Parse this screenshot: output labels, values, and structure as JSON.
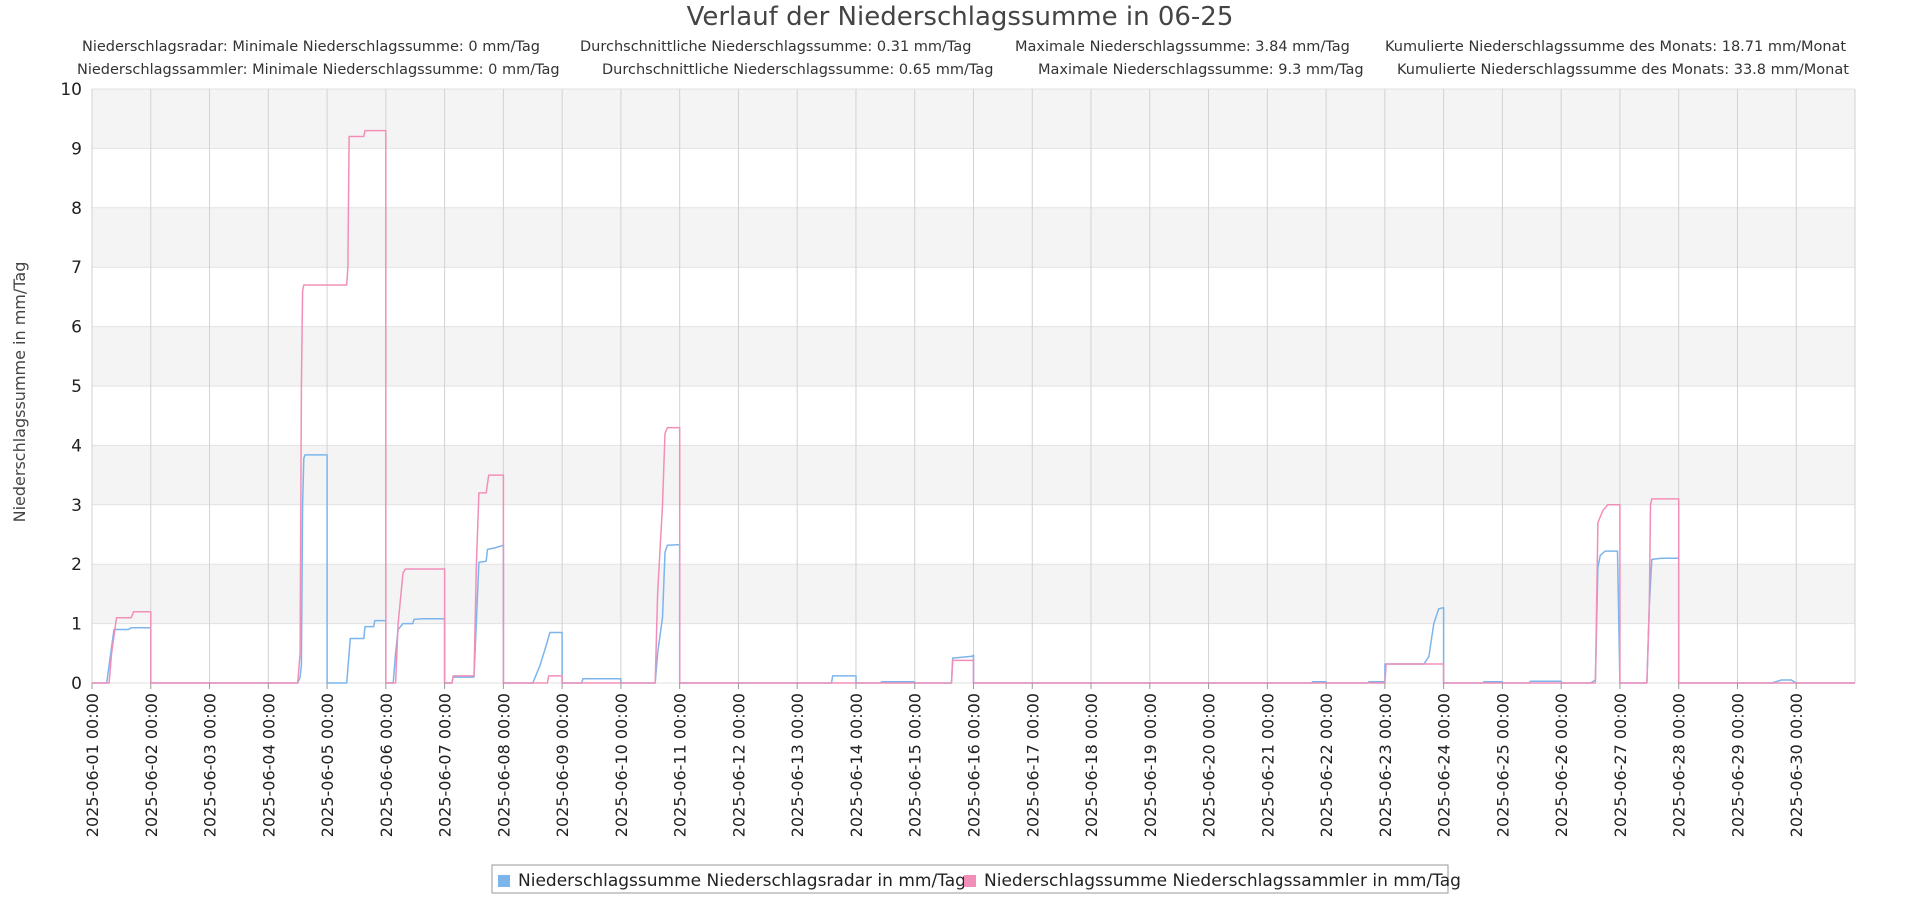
{
  "chart_data": {
    "type": "line",
    "title": "Verlauf der Niederschlagssumme in 06-25",
    "stats": [
      {
        "name": "Niederschlagsradar",
        "min_label": "Niederschlagsradar: Minimale Niederschlagssumme: 0 mm/Tag",
        "avg_label": "Durchschnittliche Niederschlagssumme: 0.31 mm/Tag",
        "max_label": "Maximale Niederschlagssumme: 3.84 mm/Tag",
        "cum_label": "Kumulierte Niederschlagssumme des Monats: 18.71 mm/Monat"
      },
      {
        "name": "Niederschlagssammler",
        "min_label": "Niederschlagssammler: Minimale Niederschlagssumme: 0 mm/Tag",
        "avg_label": "Durchschnittliche Niederschlagssumme: 0.65 mm/Tag",
        "max_label": "Maximale Niederschlagssumme: 9.3 mm/Tag",
        "cum_label": "Kumulierte Niederschlagssumme des Monats: 33.8 mm/Monat"
      }
    ],
    "ylabel": "Niederschlagssumme in mm/Tag",
    "ylim": [
      0,
      10
    ],
    "yticks": [
      0,
      1,
      2,
      3,
      4,
      5,
      6,
      7,
      8,
      9,
      10
    ],
    "xlim": [
      "2025-06-01 00:00",
      "2025-07-01 00:00"
    ],
    "xticks": [
      "2025-06-01 00:00",
      "2025-06-02 00:00",
      "2025-06-03 00:00",
      "2025-06-04 00:00",
      "2025-06-05 00:00",
      "2025-06-06 00:00",
      "2025-06-07 00:00",
      "2025-06-08 00:00",
      "2025-06-09 00:00",
      "2025-06-10 00:00",
      "2025-06-11 00:00",
      "2025-06-12 00:00",
      "2025-06-13 00:00",
      "2025-06-14 00:00",
      "2025-06-15 00:00",
      "2025-06-16 00:00",
      "2025-06-17 00:00",
      "2025-06-18 00:00",
      "2025-06-19 00:00",
      "2025-06-20 00:00",
      "2025-06-21 00:00",
      "2025-06-22 00:00",
      "2025-06-23 00:00",
      "2025-06-24 00:00",
      "2025-06-25 00:00",
      "2025-06-26 00:00",
      "2025-06-27 00:00",
      "2025-06-28 00:00",
      "2025-06-29 00:00",
      "2025-06-30 00:00"
    ],
    "grid": true,
    "legend_position": "bottom-center",
    "series": [
      {
        "name": "Niederschlagssumme Niederschlagsradar in mm/Tag",
        "color": "#7cb5ec",
        "points": [
          [
            "2025-06-01 00:00",
            0
          ],
          [
            "2025-06-01 06:00",
            0
          ],
          [
            "2025-06-01 07:00",
            0.3
          ],
          [
            "2025-06-01 09:00",
            0.9
          ],
          [
            "2025-06-01 15:00",
            0.9
          ],
          [
            "2025-06-01 16:00",
            0.93
          ],
          [
            "2025-06-02 00:00",
            0.93
          ],
          [
            "2025-06-02 00:00",
            0
          ],
          [
            "2025-06-04 12:00",
            0
          ],
          [
            "2025-06-04 13:00",
            0.1
          ],
          [
            "2025-06-04 13:30",
            0.3
          ],
          [
            "2025-06-04 14:00",
            3.0
          ],
          [
            "2025-06-04 14:30",
            3.78
          ],
          [
            "2025-06-04 15:00",
            3.84
          ],
          [
            "2025-06-05 00:00",
            3.84
          ],
          [
            "2025-06-05 00:00",
            0
          ],
          [
            "2025-06-05 08:00",
            0
          ],
          [
            "2025-06-05 09:00",
            0.5
          ],
          [
            "2025-06-05 09:30",
            0.75
          ],
          [
            "2025-06-05 15:00",
            0.75
          ],
          [
            "2025-06-05 15:30",
            0.95
          ],
          [
            "2025-06-05 19:00",
            0.95
          ],
          [
            "2025-06-05 19:30",
            1.05
          ],
          [
            "2025-06-06 00:00",
            1.05
          ],
          [
            "2025-06-06 00:00",
            0
          ],
          [
            "2025-06-06 03:00",
            0
          ],
          [
            "2025-06-06 04:00",
            0.5
          ],
          [
            "2025-06-06 05:00",
            0.9
          ],
          [
            "2025-06-06 07:00",
            1.0
          ],
          [
            "2025-06-06 11:00",
            1.0
          ],
          [
            "2025-06-06 11:30",
            1.07
          ],
          [
            "2025-06-06 15:00",
            1.08
          ],
          [
            "2025-06-07 00:00",
            1.08
          ],
          [
            "2025-06-07 00:00",
            0
          ],
          [
            "2025-06-07 03:00",
            0
          ],
          [
            "2025-06-07 03:30",
            0.1
          ],
          [
            "2025-06-07 12:00",
            0.1
          ],
          [
            "2025-06-07 14:00",
            2.03
          ],
          [
            "2025-06-07 17:00",
            2.05
          ],
          [
            "2025-06-07 17:30",
            2.25
          ],
          [
            "2025-06-07 21:00",
            2.28
          ],
          [
            "2025-06-08 00:00",
            2.32
          ],
          [
            "2025-06-08 00:00",
            0
          ],
          [
            "2025-06-08 12:00",
            0
          ],
          [
            "2025-06-08 15:00",
            0.3
          ],
          [
            "2025-06-08 18:00",
            0.7
          ],
          [
            "2025-06-08 19:00",
            0.85
          ],
          [
            "2025-06-09 00:00",
            0.85
          ],
          [
            "2025-06-09 00:00",
            0
          ],
          [
            "2025-06-09 08:00",
            0
          ],
          [
            "2025-06-09 08:30",
            0.07
          ],
          [
            "2025-06-10 00:00",
            0.07
          ],
          [
            "2025-06-10 00:00",
            0
          ],
          [
            "2025-06-10 14:00",
            0
          ],
          [
            "2025-06-10 15:00",
            0.5
          ],
          [
            "2025-06-10 17:00",
            1.1
          ],
          [
            "2025-06-10 18:00",
            2.2
          ],
          [
            "2025-06-10 19:00",
            2.32
          ],
          [
            "2025-06-11 00:00",
            2.33
          ],
          [
            "2025-06-11 00:00",
            0
          ],
          [
            "2025-06-13 14:00",
            0
          ],
          [
            "2025-06-13 14:30",
            0.12
          ],
          [
            "2025-06-14 00:00",
            0.12
          ],
          [
            "2025-06-14 00:00",
            0
          ],
          [
            "2025-06-14 10:00",
            0
          ],
          [
            "2025-06-14 10:30",
            0.02
          ],
          [
            "2025-06-15 00:00",
            0.02
          ],
          [
            "2025-06-15 00:00",
            0
          ],
          [
            "2025-06-15 15:00",
            0
          ],
          [
            "2025-06-15 15:30",
            0.42
          ],
          [
            "2025-06-15 23:30",
            0.45
          ],
          [
            "2025-06-16 00:00",
            0.47
          ],
          [
            "2025-06-16 00:00",
            0
          ],
          [
            "2025-06-21 18:00",
            0
          ],
          [
            "2025-06-21 18:30",
            0.02
          ],
          [
            "2025-06-22 00:00",
            0.02
          ],
          [
            "2025-06-22 00:00",
            0
          ],
          [
            "2025-06-22 17:00",
            0
          ],
          [
            "2025-06-22 17:30",
            0.02
          ],
          [
            "2025-06-23 00:00",
            0.02
          ],
          [
            "2025-06-23 00:00",
            0.32
          ],
          [
            "2025-06-23 16:00",
            0.32
          ],
          [
            "2025-06-23 18:00",
            0.45
          ],
          [
            "2025-06-23 20:00",
            1.0
          ],
          [
            "2025-06-23 22:00",
            1.25
          ],
          [
            "2025-06-24 00:00",
            1.27
          ],
          [
            "2025-06-24 00:00",
            0
          ],
          [
            "2025-06-24 16:00",
            0
          ],
          [
            "2025-06-24 16:30",
            0.02
          ],
          [
            "2025-06-25 00:00",
            0.02
          ],
          [
            "2025-06-25 00:00",
            0
          ],
          [
            "2025-06-25 11:00",
            0
          ],
          [
            "2025-06-25 11:30",
            0.03
          ],
          [
            "2025-06-26 00:00",
            0.03
          ],
          [
            "2025-06-26 00:00",
            0
          ],
          [
            "2025-06-26 12:00",
            0
          ],
          [
            "2025-06-26 14:00",
            0.05
          ],
          [
            "2025-06-26 15:00",
            1.95
          ],
          [
            "2025-06-26 16:00",
            2.15
          ],
          [
            "2025-06-26 18:00",
            2.22
          ],
          [
            "2025-06-26 23:00",
            2.22
          ],
          [
            "2025-06-27 00:00",
            0
          ],
          [
            "2025-06-27 11:00",
            0
          ],
          [
            "2025-06-27 12:00",
            1.3
          ],
          [
            "2025-06-27 13:00",
            2.08
          ],
          [
            "2025-06-27 17:00",
            2.1
          ],
          [
            "2025-06-28 00:00",
            2.1
          ],
          [
            "2025-06-28 00:00",
            0
          ],
          [
            "2025-06-29 14:00",
            0
          ],
          [
            "2025-06-29 18:00",
            0.05
          ],
          [
            "2025-06-29 22:00",
            0.05
          ],
          [
            "2025-06-30 00:00",
            0
          ],
          [
            "2025-07-01 00:00",
            0
          ]
        ]
      },
      {
        "name": "Niederschlagssumme Niederschlagssammler in mm/Tag",
        "color": "#f28fb9",
        "points": [
          [
            "2025-06-01 00:00",
            0
          ],
          [
            "2025-06-01 07:00",
            0
          ],
          [
            "2025-06-01 08:00",
            0.5
          ],
          [
            "2025-06-01 10:00",
            1.1
          ],
          [
            "2025-06-01 16:00",
            1.1
          ],
          [
            "2025-06-01 17:00",
            1.2
          ],
          [
            "2025-06-02 00:00",
            1.2
          ],
          [
            "2025-06-02 00:00",
            0
          ],
          [
            "2025-06-04 12:00",
            0
          ],
          [
            "2025-06-04 13:00",
            0.5
          ],
          [
            "2025-06-04 13:30",
            5.0
          ],
          [
            "2025-06-04 14:00",
            6.6
          ],
          [
            "2025-06-04 14:30",
            6.7
          ],
          [
            "2025-06-05 08:00",
            6.7
          ],
          [
            "2025-06-05 08:30",
            7.0
          ],
          [
            "2025-06-05 09:00",
            9.2
          ],
          [
            "2025-06-05 15:00",
            9.2
          ],
          [
            "2025-06-05 15:30",
            9.3
          ],
          [
            "2025-06-06 00:00",
            9.3
          ],
          [
            "2025-06-06 00:00",
            0
          ],
          [
            "2025-06-06 04:00",
            0
          ],
          [
            "2025-06-06 05:00",
            1.0
          ],
          [
            "2025-06-06 07:00",
            1.85
          ],
          [
            "2025-06-06 08:00",
            1.92
          ],
          [
            "2025-06-07 00:00",
            1.92
          ],
          [
            "2025-06-07 00:00",
            0
          ],
          [
            "2025-06-07 03:00",
            0
          ],
          [
            "2025-06-07 03:30",
            0.12
          ],
          [
            "2025-06-07 12:00",
            0.12
          ],
          [
            "2025-06-07 13:00",
            2.0
          ],
          [
            "2025-06-07 14:00",
            3.2
          ],
          [
            "2025-06-07 17:00",
            3.2
          ],
          [
            "2025-06-07 18:00",
            3.5
          ],
          [
            "2025-06-08 00:00",
            3.5
          ],
          [
            "2025-06-08 00:00",
            0
          ],
          [
            "2025-06-08 18:00",
            0
          ],
          [
            "2025-06-08 18:30",
            0.12
          ],
          [
            "2025-06-09 00:00",
            0.12
          ],
          [
            "2025-06-09 00:00",
            0
          ],
          [
            "2025-06-10 14:00",
            0
          ],
          [
            "2025-06-10 15:00",
            1.5
          ],
          [
            "2025-06-10 17:00",
            3.0
          ],
          [
            "2025-06-10 18:00",
            4.2
          ],
          [
            "2025-06-10 19:00",
            4.3
          ],
          [
            "2025-06-11 00:00",
            4.3
          ],
          [
            "2025-06-11 00:00",
            0
          ],
          [
            "2025-06-15 15:00",
            0
          ],
          [
            "2025-06-15 15:30",
            0.38
          ],
          [
            "2025-06-16 00:00",
            0.38
          ],
          [
            "2025-06-16 00:00",
            0
          ],
          [
            "2025-06-23 00:00",
            0
          ],
          [
            "2025-06-23 00:30",
            0.32
          ],
          [
            "2025-06-24 00:00",
            0.32
          ],
          [
            "2025-06-24 00:00",
            0
          ],
          [
            "2025-06-26 14:00",
            0
          ],
          [
            "2025-06-26 15:00",
            2.7
          ],
          [
            "2025-06-26 17:00",
            2.9
          ],
          [
            "2025-06-26 19:00",
            3.0
          ],
          [
            "2025-06-27 00:00",
            3.0
          ],
          [
            "2025-06-27 00:00",
            0
          ],
          [
            "2025-06-27 11:00",
            0
          ],
          [
            "2025-06-27 12:00",
            1.3
          ],
          [
            "2025-06-27 12:30",
            3.0
          ],
          [
            "2025-06-27 13:00",
            3.1
          ],
          [
            "2025-06-28 00:00",
            3.1
          ],
          [
            "2025-06-28 00:00",
            0
          ],
          [
            "2025-07-01 00:00",
            0
          ]
        ]
      }
    ]
  }
}
